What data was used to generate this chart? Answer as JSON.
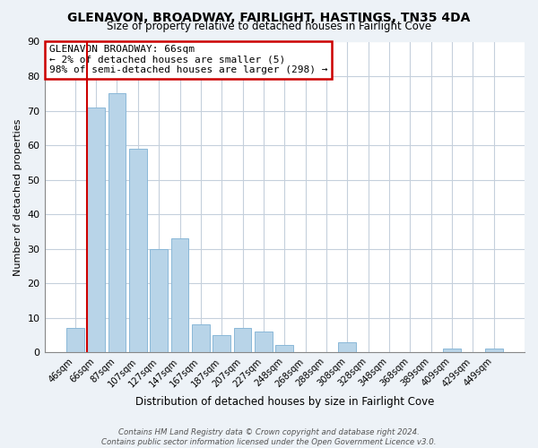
{
  "title": "GLENAVON, BROADWAY, FAIRLIGHT, HASTINGS, TN35 4DA",
  "subtitle": "Size of property relative to detached houses in Fairlight Cove",
  "xlabel": "Distribution of detached houses by size in Fairlight Cove",
  "ylabel": "Number of detached properties",
  "bar_color": "#b8d4e8",
  "marker_color": "#cc0000",
  "categories": [
    "46sqm",
    "66sqm",
    "87sqm",
    "107sqm",
    "127sqm",
    "147sqm",
    "167sqm",
    "187sqm",
    "207sqm",
    "227sqm",
    "248sqm",
    "268sqm",
    "288sqm",
    "308sqm",
    "328sqm",
    "348sqm",
    "368sqm",
    "389sqm",
    "409sqm",
    "429sqm",
    "449sqm"
  ],
  "values": [
    7,
    71,
    75,
    59,
    30,
    33,
    8,
    5,
    7,
    6,
    2,
    0,
    0,
    3,
    0,
    0,
    0,
    0,
    1,
    0,
    1
  ],
  "ylim": [
    0,
    90
  ],
  "yticks": [
    0,
    10,
    20,
    30,
    40,
    50,
    60,
    70,
    80,
    90
  ],
  "annotation_title": "GLENAVON BROADWAY: 66sqm",
  "annotation_line1": "← 2% of detached houses are smaller (5)",
  "annotation_line2": "98% of semi-detached houses are larger (298) →",
  "footer1": "Contains HM Land Registry data © Crown copyright and database right 2024.",
  "footer2": "Contains public sector information licensed under the Open Government Licence v3.0.",
  "background_color": "#edf2f7",
  "plot_bg_color": "#ffffff",
  "grid_color": "#c5d0dc"
}
